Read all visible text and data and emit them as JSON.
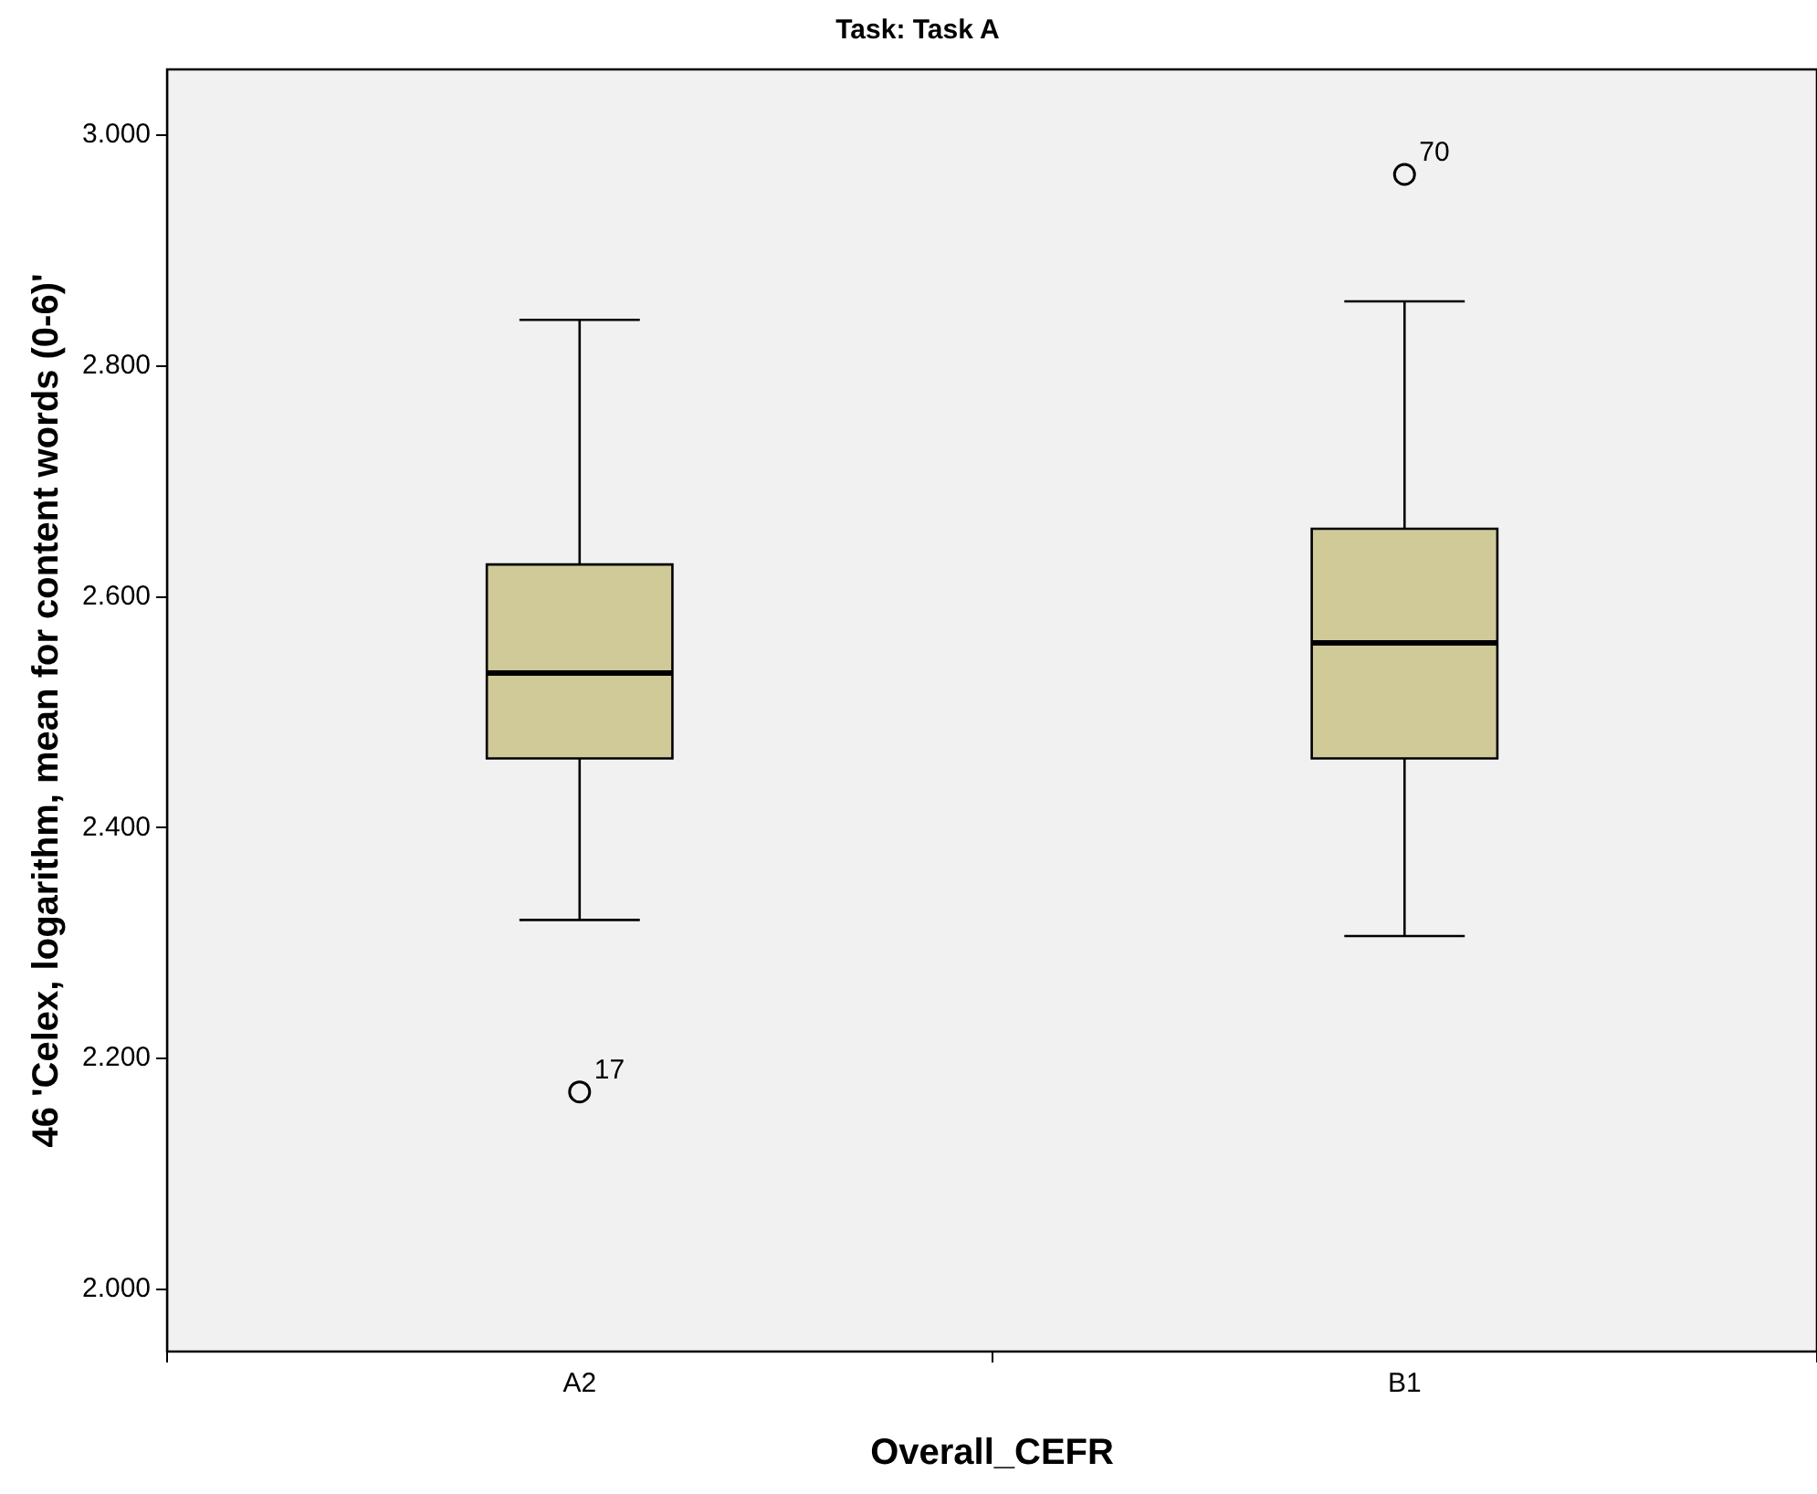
{
  "chart_data": {
    "type": "box",
    "title": "Task: Task A",
    "xlabel": "Overall_CEFR",
    "ylabel": "46 'Celex, logarithm, mean for content words (0-6)'",
    "categories": [
      "A2",
      "B1"
    ],
    "color": "#cfca98",
    "boxes": [
      {
        "low": 2.32,
        "q1": 2.46,
        "median": 2.534,
        "q3": 2.628,
        "high": 2.84,
        "outliers": [
          2.171
        ]
      },
      {
        "low": 2.306,
        "q1": 2.46,
        "median": 2.56,
        "q3": 2.659,
        "high": 2.856,
        "outliers": [
          2.966
        ]
      }
    ],
    "ylim": [
      1.946,
      3.057
    ],
    "yticks": [
      {
        "value": 2,
        "label": "2.000"
      },
      {
        "value": 2.2,
        "label": "2.200"
      },
      {
        "value": 2.4,
        "label": "2.400"
      },
      {
        "value": 2.6,
        "label": "2.600"
      },
      {
        "value": 2.8,
        "label": "2.800"
      },
      {
        "value": 3,
        "label": "3.000"
      }
    ],
    "annotations": [
      "17",
      "70"
    ],
    "legend": false,
    "marker": "circle"
  }
}
